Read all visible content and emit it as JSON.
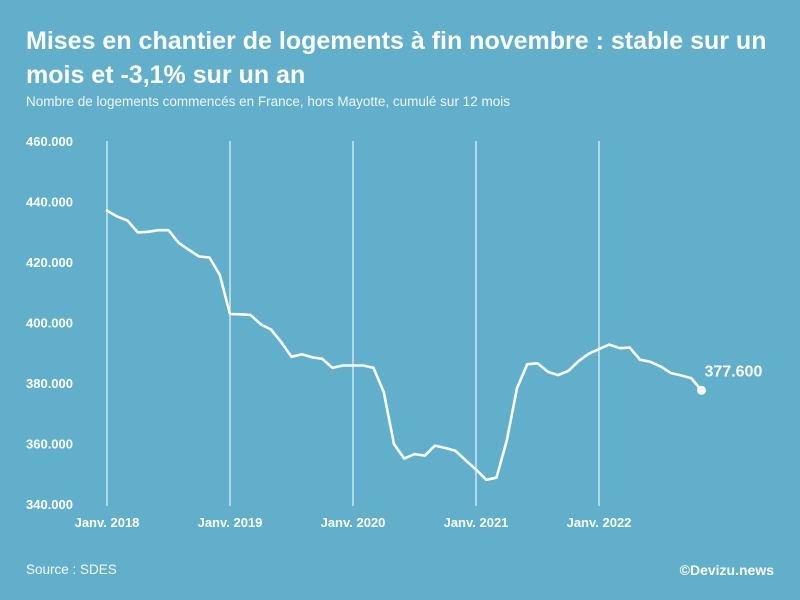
{
  "title": "Mises en chantier de logements à fin novembre : stable sur un mois et -3,1% sur un an",
  "subtitle": "Nombre de logements commencés en France, hors Mayotte, cumulé sur 12 mois",
  "source": "Source : SDES",
  "credit": "©Devizu.news",
  "colors": {
    "background": "#62afcb",
    "line": "#ffffff"
  },
  "chart_data": {
    "type": "line",
    "ylim": [
      340000,
      460000
    ],
    "yticks": [
      340000,
      360000,
      380000,
      400000,
      420000,
      440000,
      460000
    ],
    "ytick_labels": [
      "340.000",
      "360.000",
      "380.000",
      "400.000",
      "420.000",
      "440.000",
      "460.000"
    ],
    "x_start": "Janv. 2018",
    "x_ticks": [
      {
        "index": 0,
        "label": "Janv. 2018"
      },
      {
        "index": 12,
        "label": "Janv. 2019"
      },
      {
        "index": 24,
        "label": "Janv. 2020"
      },
      {
        "index": 36,
        "label": "Janv. 2021"
      },
      {
        "index": 48,
        "label": "Janv. 2022"
      }
    ],
    "x_count": 59,
    "last_label": "377.600",
    "series": [
      {
        "name": "Logements commencés (cumul 12 mois)",
        "values": [
          437000,
          435000,
          433700,
          429800,
          430000,
          430500,
          430500,
          426300,
          424000,
          421800,
          421500,
          415700,
          402800,
          402700,
          402500,
          399400,
          397700,
          393500,
          388700,
          389500,
          388500,
          388000,
          385000,
          385800,
          385800,
          385800,
          385000,
          377000,
          359800,
          355000,
          356500,
          356000,
          359300,
          358500,
          357600,
          354400,
          351400,
          348000,
          348700,
          361000,
          378300,
          386200,
          386500,
          383700,
          382600,
          384000,
          387200,
          389700,
          391200,
          392700,
          391500,
          391700,
          387700,
          387000,
          385500,
          383300,
          382500,
          381600,
          377600
        ]
      }
    ]
  }
}
